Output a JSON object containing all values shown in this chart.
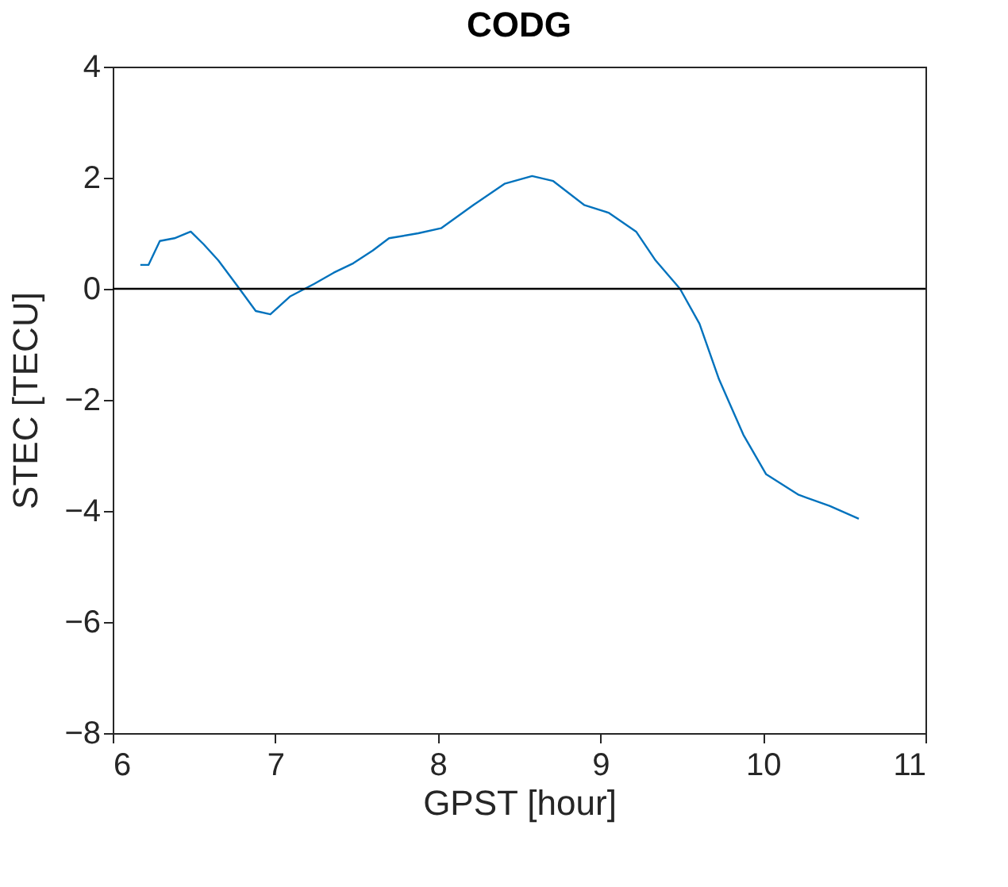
{
  "chart_data": {
    "type": "line",
    "title": "CODG",
    "xlabel": "GPST [hour]",
    "ylabel": "STEC [TECU]",
    "xlim": [
      6,
      11
    ],
    "xticks": [
      6,
      7,
      8,
      9,
      10,
      11
    ],
    "ylim": [
      -8,
      4
    ],
    "yticks": [
      -8,
      -6,
      -4,
      -2,
      0,
      2,
      4
    ],
    "grid": false,
    "legend": false,
    "ref_lines": [
      {
        "axis": "y",
        "value": 0,
        "color": "#000000"
      }
    ],
    "series": [
      {
        "color": "#0072bd",
        "x": [
          6.17,
          6.22,
          6.29,
          6.38,
          6.48,
          6.56,
          6.65,
          6.78,
          6.88,
          6.97,
          7.09,
          7.24,
          7.36,
          7.48,
          7.6,
          7.7,
          7.88,
          8.02,
          8.22,
          8.41,
          8.58,
          8.71,
          8.9,
          9.05,
          9.22,
          9.34,
          9.49,
          9.61,
          9.73,
          9.88,
          10.02,
          10.22,
          10.41,
          10.59
        ],
        "values": [
          0.43,
          0.43,
          0.86,
          0.91,
          1.03,
          0.8,
          0.51,
          0,
          -0.4,
          -0.46,
          -0.14,
          0.09,
          0.29,
          0.46,
          0.69,
          0.91,
          1.0,
          1.09,
          1.51,
          1.89,
          2.03,
          1.94,
          1.51,
          1.37,
          1.03,
          0.51,
          0,
          -0.63,
          -1.63,
          -2.63,
          -3.34,
          -3.71,
          -3.91,
          -4.14
        ]
      }
    ]
  }
}
